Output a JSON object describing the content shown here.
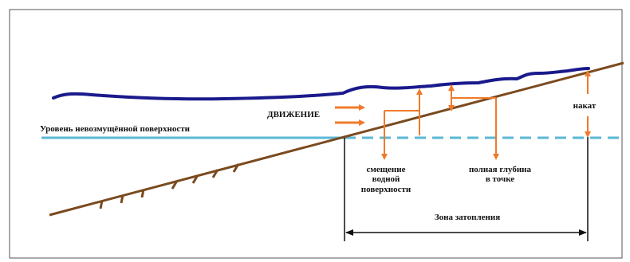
{
  "labels": {
    "undisturbed_level": "Уровень невозмущённой поверхности",
    "motion": "ДВИЖЕНИЕ",
    "displacement_line1": "смещение",
    "displacement_line2": "водной",
    "displacement_line3": "поверхности",
    "full_depth_line1": "полная глубина",
    "full_depth_line2": "в точке",
    "runup": "накат",
    "flood_zone": "Зона затопления"
  },
  "colors": {
    "background": "#ffffff",
    "frame": "#555555",
    "wave_surface": "#1a1a8c",
    "still_water": "#5bb8d4",
    "still_water_dashed": "#5bb8d4",
    "seabed": "#7a4a1e",
    "arrows": "#f07a2a",
    "marker_lines": "#111111",
    "text": "#111111"
  }
}
